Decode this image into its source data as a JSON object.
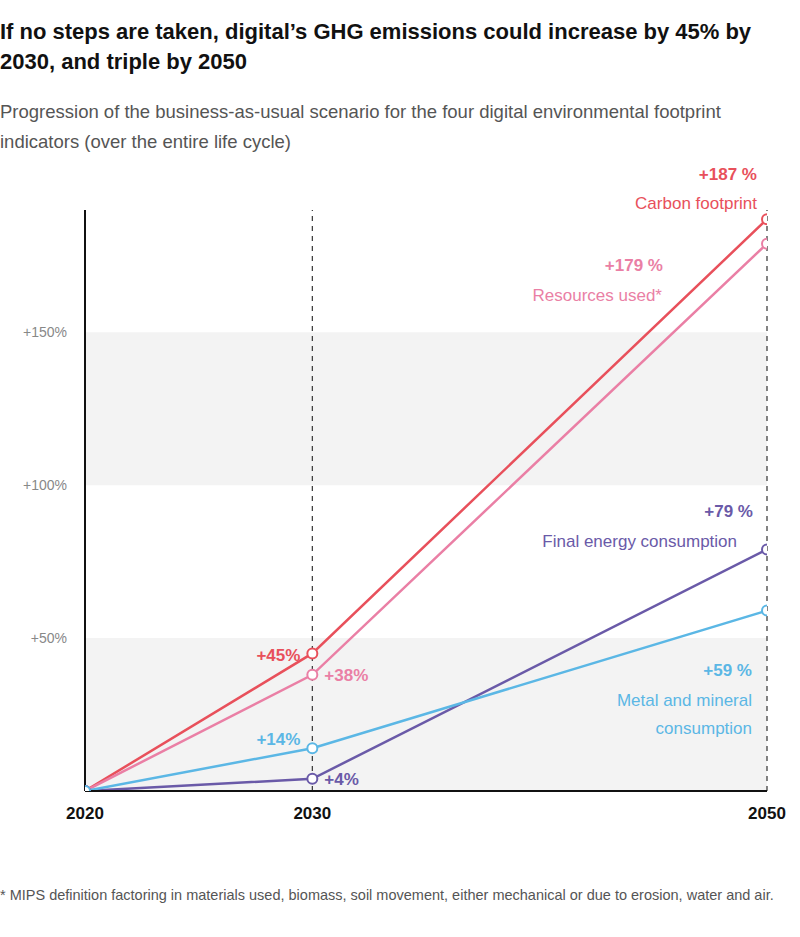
{
  "chart_data": {
    "type": "line",
    "title": "If no steps are taken, digital’s GHG emissions could increase by 45% by 2030, and triple by 2050",
    "subtitle": "Progression of the business-as-usual scenario for the four digital environmental footprint indicators (over the entire life cycle)",
    "annotations": [
      "* MIPS definition factoring in materials used, biomass, soil movement, either mechanical or due to erosion, water and air."
    ],
    "x": [
      2020,
      2030,
      2050
    ],
    "xlim": [
      2020,
      2050
    ],
    "xticks": [
      2020,
      2030,
      2050
    ],
    "ylim": [
      0,
      190
    ],
    "yticks": [
      {
        "value": 50,
        "label": "+50%"
      },
      {
        "value": 100,
        "label": "+100%"
      },
      {
        "value": 150,
        "label": "+150%"
      }
    ],
    "grid": true,
    "data_labels": true,
    "marker": "circle",
    "line_style": "solid",
    "series": [
      {
        "name": "Carbon footprint",
        "color": "#e8505b",
        "values": [
          0,
          45,
          187
        ],
        "value_labels": [
          null,
          "+45%",
          "+187 %"
        ]
      },
      {
        "name": "Resources used*",
        "color": "#ea7fa5",
        "values": [
          0,
          38,
          179
        ],
        "value_labels": [
          null,
          "+38%",
          "+179 %"
        ]
      },
      {
        "name": "Final energy consumption",
        "color": "#6a5aa8",
        "values": [
          0,
          4,
          79
        ],
        "value_labels": [
          null,
          "+4%",
          "+79 %"
        ]
      },
      {
        "name": "Metal and mineral consumption",
        "color": "#5bb7e5",
        "values": [
          0,
          14,
          59
        ],
        "value_labels": [
          null,
          "+14%",
          "+59 %"
        ]
      }
    ]
  }
}
